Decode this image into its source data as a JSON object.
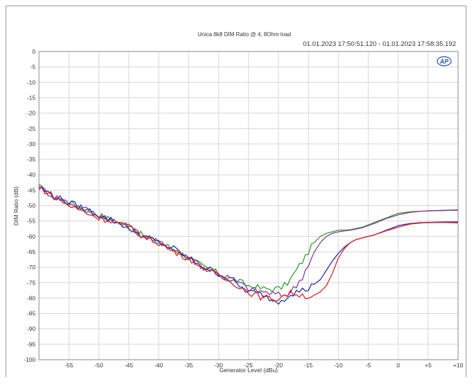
{
  "chart_data": {
    "type": "line",
    "title": "Unica 8k8 DIM Ratio @ 4, 8Ohm load",
    "subtitle": "01.01.2023 17:50:51.120 - 01.01.2023 17:58:35.192",
    "xlabel": "Generator Level (dBu)",
    "ylabel": "DIM Ratio (dB)",
    "xlim": [
      -60,
      10
    ],
    "ylim": [
      -100,
      0
    ],
    "x_ticks": [
      -55,
      -50,
      -45,
      -40,
      -35,
      -30,
      -25,
      -20,
      -15,
      -10,
      -5,
      0,
      5,
      10
    ],
    "x_tick_labels": [
      "-55",
      "-50",
      "-45",
      "-40",
      "-35",
      "-30",
      "-25",
      "-20",
      "-15",
      "-10",
      "-5",
      "0",
      "+5",
      "+10"
    ],
    "y_ticks": [
      0,
      -5,
      -10,
      -15,
      -20,
      -25,
      -30,
      -35,
      -40,
      -45,
      -50,
      -55,
      -60,
      -65,
      -70,
      -75,
      -80,
      -85,
      -90,
      -95,
      -100
    ],
    "y_tick_labels": [
      "0",
      "-5",
      "-10",
      "-15",
      "-20",
      "-25",
      "-30",
      "-35",
      "-40",
      "-45",
      "-50",
      "-55",
      "-60",
      "-65",
      "-70",
      "-75",
      "-80",
      "-85",
      "-90",
      "-95",
      "-100"
    ],
    "grid": true,
    "logo": "AP",
    "series": [
      {
        "color": "#2e9e2e",
        "x": [
          -60,
          -57.5,
          -55,
          -52.5,
          -50,
          -47.5,
          -45,
          -42.5,
          -40,
          -37.5,
          -35,
          -32.5,
          -30,
          -27.5,
          -25,
          -22.5,
          -20,
          -19,
          -18,
          -17,
          -16,
          -15,
          -14,
          -13,
          -12,
          -11,
          -10,
          -9,
          -8,
          -6,
          -4,
          -2,
          0,
          2,
          4,
          6,
          8,
          10
        ],
        "y": [
          -44,
          -47,
          -49,
          -51,
          -53,
          -55,
          -57,
          -60,
          -62,
          -64,
          -67,
          -70,
          -72,
          -74,
          -76,
          -77,
          -77,
          -76,
          -74,
          -71,
          -68,
          -65,
          -62,
          -60,
          -59,
          -58.5,
          -58,
          -58,
          -57.8,
          -57,
          -55.5,
          -54,
          -52.5,
          -52,
          -51.8,
          -51.7,
          -51.6,
          -51.5
        ]
      },
      {
        "color": "#8a3a9a",
        "x": [
          -60,
          -57.5,
          -55,
          -52.5,
          -50,
          -47.5,
          -45,
          -42.5,
          -40,
          -37.5,
          -35,
          -32.5,
          -30,
          -27.5,
          -25,
          -22.5,
          -20,
          -19,
          -18,
          -17,
          -16,
          -15,
          -14,
          -13,
          -12,
          -11,
          -10,
          -9,
          -8,
          -6,
          -4,
          -2,
          0,
          2,
          4,
          6,
          8,
          10
        ],
        "y": [
          -44,
          -47,
          -49,
          -51,
          -53,
          -55,
          -57,
          -60,
          -62,
          -64,
          -67,
          -70,
          -72,
          -74,
          -77,
          -78,
          -79,
          -79,
          -78,
          -76,
          -73,
          -69,
          -65,
          -62,
          -60,
          -59,
          -58.5,
          -58.2,
          -58,
          -57.2,
          -55.8,
          -54.2,
          -53,
          -52.2,
          -51.8,
          -51.6,
          -51.5,
          -51.4
        ]
      },
      {
        "color": "#2233aa",
        "x": [
          -60,
          -57.5,
          -55,
          -52.5,
          -50,
          -47.5,
          -45,
          -42.5,
          -40,
          -37.5,
          -35,
          -32.5,
          -30,
          -27.5,
          -25,
          -22.5,
          -21,
          -20,
          -19,
          -18,
          -17,
          -16,
          -15,
          -14,
          -13,
          -12,
          -11,
          -10,
          -9,
          -8,
          -7,
          -6,
          -4,
          -2,
          0,
          2,
          4,
          6,
          8,
          10
        ],
        "y": [
          -44,
          -47,
          -49,
          -51,
          -53,
          -55,
          -57,
          -60,
          -62,
          -64,
          -67,
          -70,
          -72,
          -75,
          -78,
          -79,
          -80.5,
          -81,
          -80,
          -78.5,
          -78,
          -77.5,
          -77,
          -75.5,
          -74,
          -71,
          -68,
          -65.5,
          -63.5,
          -62,
          -61,
          -60.5,
          -59.5,
          -58,
          -56.5,
          -55.8,
          -55.5,
          -55.4,
          -55.3,
          -55.3
        ]
      },
      {
        "color": "#e02222",
        "x": [
          -60,
          -57.5,
          -55,
          -52.5,
          -50,
          -47.5,
          -45,
          -42.5,
          -40,
          -37.5,
          -35,
          -32.5,
          -30,
          -27.5,
          -25,
          -22.5,
          -21,
          -20,
          -19,
          -18,
          -17,
          -16,
          -15,
          -14,
          -13,
          -12,
          -11,
          -10,
          -9,
          -8,
          -7,
          -6,
          -4,
          -2,
          0,
          2,
          4,
          6,
          8,
          10
        ],
        "y": [
          -44,
          -47,
          -50,
          -52,
          -54,
          -55,
          -57,
          -60,
          -62,
          -65,
          -67,
          -70,
          -73,
          -75,
          -78,
          -80,
          -80.5,
          -80,
          -79,
          -78.5,
          -78.5,
          -79,
          -79.5,
          -79,
          -78,
          -76,
          -72,
          -67,
          -64,
          -62,
          -61,
          -60.5,
          -59.5,
          -58.2,
          -57,
          -56,
          -55.6,
          -55.5,
          -55.5,
          -55.6
        ]
      }
    ]
  }
}
